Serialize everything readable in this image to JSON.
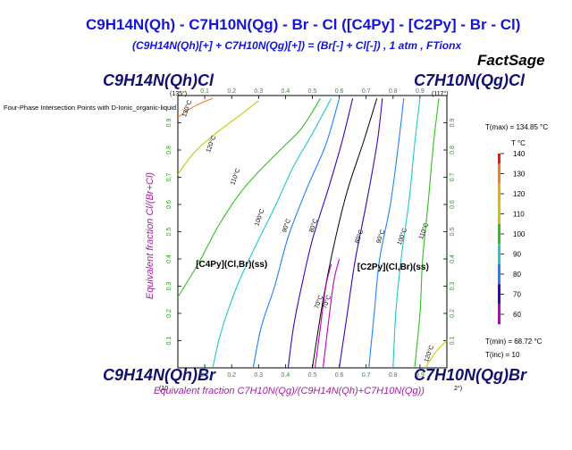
{
  "title": "C9H14N(Qh) - C7H10N(Qg) - Br - Cl  ([C4Py] - [C2Py] - Br - Cl)",
  "subtitle": "(C9H14N(Qh)[+] + C7H10N(Qg)[+]) = (Br[-] + Cl[-]) , 1 atm , FTionx",
  "brand": "FactSage",
  "note": "Four-Phase Intersection Points with D-Ionic_organic-liquid",
  "corners": {
    "top_left": "C9H14N(Qh)Cl",
    "top_left_temp": "(135°)",
    "top_right": "C7H10N(Qg)Cl",
    "top_right_temp": "(117°)",
    "bottom_left": "C9H14N(Qh)Br",
    "bottom_left_temp": "(10",
    "bottom_right": "C7H10N(Qg)Br",
    "bottom_right_temp": "2°)"
  },
  "x_axis_label": "Equivalent fraction  C7H10N(Qg)/(C9H14N(Qh)+C7H10N(Qg))",
  "y_axis_label": "Equivalent fraction  Cl/(Br+Cl)",
  "colorbar": {
    "title": "T °C",
    "tmax": "T(max) = 134.85 °C",
    "tmin": "T(min) = 68.72 °C",
    "tinc": "T(inc) =  10",
    "ticks": [
      "140",
      "130",
      "120",
      "110",
      "100",
      "90",
      "80",
      "70",
      "60"
    ],
    "colors": [
      "#ff1010",
      "#f08020",
      "#e6b400",
      "#c8c800",
      "#30c020",
      "#20c8c8",
      "#2080ff",
      "#4000c0",
      "#c000c0"
    ]
  },
  "chart_data": {
    "type": "contour",
    "xlim": [
      0,
      1
    ],
    "ylim": [
      0,
      1
    ],
    "x_ticks": [
      "0.1",
      "0.2",
      "0.3",
      "0.4",
      "0.5",
      "0.6",
      "0.7",
      "0.8",
      "0.9"
    ],
    "y_ticks": [
      "0.1",
      "0.2",
      "0.3",
      "0.4",
      "0.5",
      "0.6",
      "0.7",
      "0.8",
      "0.9"
    ],
    "x_tick_values": [
      0.1,
      0.2,
      0.3,
      0.4,
      0.5,
      0.6,
      0.7,
      0.8,
      0.9
    ],
    "y_tick_values": [
      0.1,
      0.2,
      0.3,
      0.4,
      0.5,
      0.6,
      0.7,
      0.8,
      0.9
    ],
    "regions": [
      {
        "label": "[C4Py](Cl,Br)(ss)",
        "x": 0.2,
        "y": 0.37
      },
      {
        "label": "[C2Py](Cl,Br)(ss)",
        "x": 0.8,
        "y": 0.36
      }
    ],
    "isotherms": [
      {
        "t": 130,
        "label": "130°C",
        "color": "#f08020",
        "label_at": [
          0.04,
          0.95
        ],
        "points": [
          [
            0,
            0.92
          ],
          [
            0.06,
            0.96
          ],
          [
            0.13,
            0.99
          ]
        ]
      },
      {
        "t": 120,
        "label": "120°C",
        "color": "#c8c800",
        "label_at": [
          0.13,
          0.82
        ],
        "points": [
          [
            0,
            0.71
          ],
          [
            0.06,
            0.79
          ],
          [
            0.14,
            0.86
          ],
          [
            0.22,
            0.92
          ],
          [
            0.3,
            0.98
          ]
        ]
      },
      {
        "t": 110,
        "label": "110°C",
        "color": "#30c020",
        "label_at": [
          0.22,
          0.7
        ],
        "points": [
          [
            0,
            0.26
          ],
          [
            0.08,
            0.39
          ],
          [
            0.15,
            0.52
          ],
          [
            0.23,
            0.64
          ],
          [
            0.3,
            0.72
          ],
          [
            0.38,
            0.8
          ],
          [
            0.46,
            0.88
          ],
          [
            0.53,
            0.99
          ]
        ]
      },
      {
        "t": 100,
        "label": "100°C",
        "color": "#20c8c8",
        "label_at": [
          0.31,
          0.55
        ],
        "points": [
          [
            0.13,
            0
          ],
          [
            0.16,
            0.13
          ],
          [
            0.22,
            0.3
          ],
          [
            0.29,
            0.45
          ],
          [
            0.36,
            0.59
          ],
          [
            0.43,
            0.74
          ],
          [
            0.5,
            0.86
          ],
          [
            0.57,
            0.99
          ]
        ]
      },
      {
        "t": 90,
        "label": "90°C",
        "color": "#2080ff",
        "label_at": [
          0.41,
          0.52
        ],
        "points": [
          [
            0.28,
            0
          ],
          [
            0.31,
            0.15
          ],
          [
            0.36,
            0.3
          ],
          [
            0.41,
            0.48
          ],
          [
            0.48,
            0.66
          ],
          [
            0.55,
            0.82
          ],
          [
            0.6,
            0.99
          ]
        ]
      },
      {
        "t": 80,
        "label": "80°C",
        "color": "#4000c0",
        "label_at": [
          0.51,
          0.52
        ],
        "points": [
          [
            0.41,
            0
          ],
          [
            0.43,
            0.15
          ],
          [
            0.46,
            0.3
          ],
          [
            0.5,
            0.47
          ],
          [
            0.56,
            0.66
          ],
          [
            0.61,
            0.83
          ],
          [
            0.65,
            0.99
          ]
        ]
      },
      {
        "t": 70,
        "label": "70°C",
        "color": "#c000c0",
        "label_at": [
          0.53,
          0.24
        ],
        "points": [
          [
            0.51,
            0
          ],
          [
            0.53,
            0.15
          ],
          [
            0.55,
            0.3
          ],
          [
            0.57,
            0.38
          ]
        ]
      },
      {
        "t": 70,
        "label": "70°C",
        "color": "#c000c0",
        "label_at": [
          0.56,
          0.24
        ],
        "points": [
          [
            0.54,
            0
          ],
          [
            0.56,
            0.17
          ],
          [
            0.58,
            0.32
          ],
          [
            0.6,
            0.4
          ]
        ]
      },
      {
        "t": 80,
        "label": "80°C",
        "color": "#4000c0",
        "label_at": [
          0.68,
          0.48
        ],
        "points": [
          [
            0.6,
            0
          ],
          [
            0.63,
            0.2
          ],
          [
            0.66,
            0.4
          ],
          [
            0.7,
            0.6
          ],
          [
            0.74,
            0.82
          ],
          [
            0.76,
            0.99
          ]
        ]
      },
      {
        "t": 90,
        "label": "90°C",
        "color": "#2080ff",
        "label_at": [
          0.76,
          0.48
        ],
        "points": [
          [
            0.71,
            0
          ],
          [
            0.73,
            0.2
          ],
          [
            0.75,
            0.4
          ],
          [
            0.79,
            0.6
          ],
          [
            0.82,
            0.82
          ],
          [
            0.84,
            0.99
          ]
        ]
      },
      {
        "t": 100,
        "label": "100°C",
        "color": "#20c8c8",
        "label_at": [
          0.84,
          0.48
        ],
        "points": [
          [
            0.8,
            0
          ],
          [
            0.81,
            0.2
          ],
          [
            0.83,
            0.4
          ],
          [
            0.86,
            0.62
          ],
          [
            0.88,
            0.82
          ],
          [
            0.9,
            0.99
          ]
        ]
      },
      {
        "t": 110,
        "label": "110°C",
        "color": "#30c020",
        "label_at": [
          0.92,
          0.5
        ],
        "points": [
          [
            0.88,
            0
          ],
          [
            0.9,
            0.2
          ],
          [
            0.91,
            0.4
          ],
          [
            0.93,
            0.6
          ],
          [
            0.95,
            0.82
          ],
          [
            0.97,
            0.99
          ]
        ]
      },
      {
        "t": 120,
        "label": "120°C",
        "color": "#c8c800",
        "label_at": [
          0.94,
          0.05
        ],
        "points": [
          [
            0.92,
            0
          ],
          [
            0.96,
            0.06
          ],
          [
            1,
            0.1
          ]
        ]
      }
    ],
    "phase_boundary": [
      [
        0.5,
        0
      ],
      [
        0.54,
        0.25
      ],
      [
        0.58,
        0.45
      ],
      [
        0.63,
        0.65
      ],
      [
        0.69,
        0.83
      ],
      [
        0.74,
        0.99
      ]
    ]
  }
}
